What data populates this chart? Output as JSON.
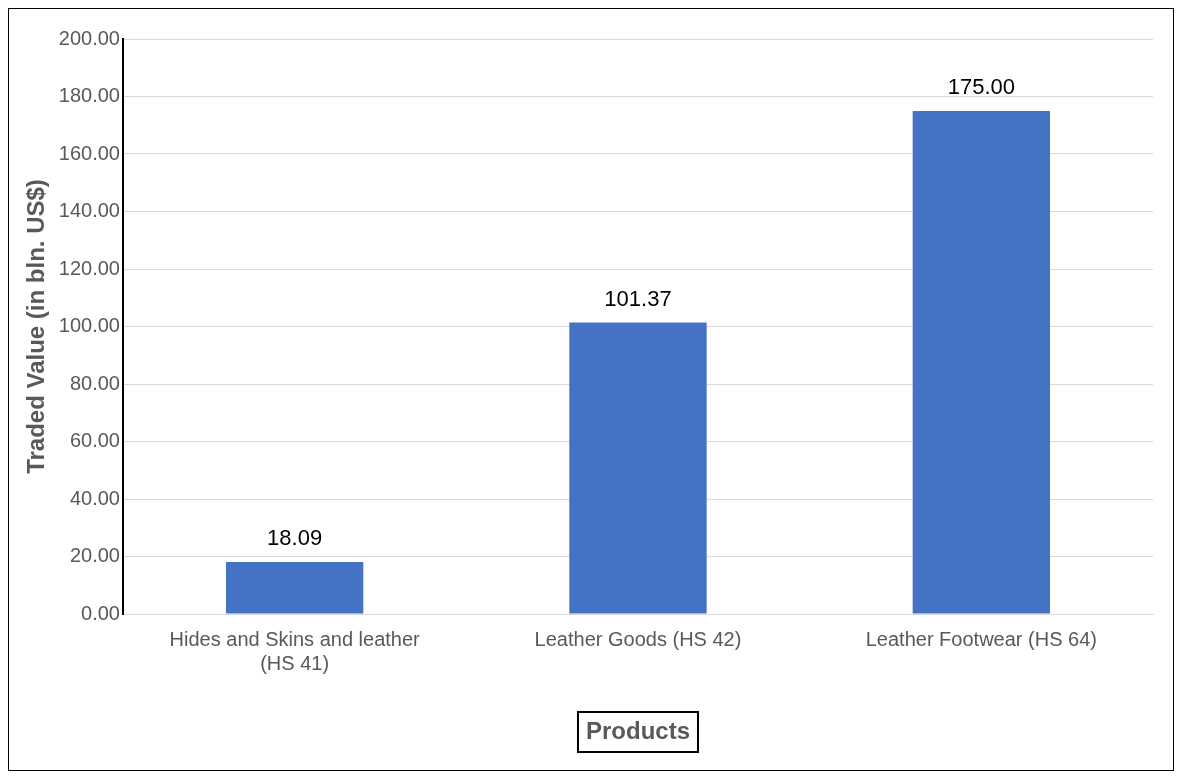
{
  "chart_data": {
    "type": "bar",
    "xlabel": "Products",
    "ylabel": "Traded Value (in bln. US$)",
    "categories": [
      "Hides and Skins and leather (HS 41)",
      "Leather Goods (HS 42)",
      "Leather Footwear (HS 64)"
    ],
    "values": [
      18.09,
      101.37,
      175.0
    ],
    "color": "#4472c4",
    "value_labels": [
      "18.09",
      "101.37",
      "175.00"
    ],
    "ylim": [
      0,
      200
    ],
    "yticks": [
      {
        "value": 0,
        "label": "0.00"
      },
      {
        "value": 20,
        "label": "20.00"
      },
      {
        "value": 40,
        "label": "40.00"
      },
      {
        "value": 60,
        "label": "60.00"
      },
      {
        "value": 80,
        "label": "80.00"
      },
      {
        "value": 100,
        "label": "100.00"
      },
      {
        "value": 120,
        "label": "120.00"
      },
      {
        "value": 140,
        "label": "140.00"
      },
      {
        "value": 160,
        "label": "160.00"
      },
      {
        "value": 180,
        "label": "180.00"
      },
      {
        "value": 200,
        "label": "200.00"
      }
    ],
    "grid": "y",
    "legend": false
  }
}
